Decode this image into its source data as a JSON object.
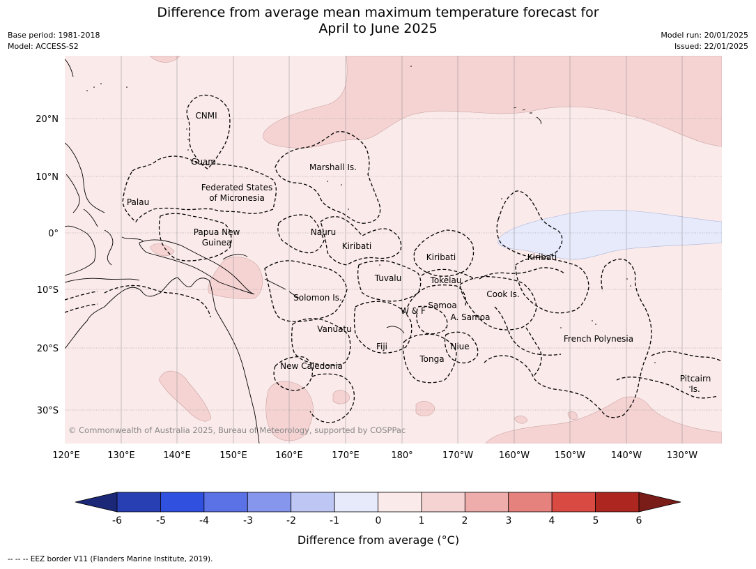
{
  "title_line1": "Difference from average mean maximum temperature forecast for",
  "title_line2": "April to June 2025",
  "meta_left": {
    "base_period": "Base period: 1981-2018",
    "model": "Model: ACCESS-S2"
  },
  "meta_right": {
    "model_run": "Model run: 20/01/2025",
    "issued": "Issued: 22/01/2025"
  },
  "map": {
    "lon_labels": [
      "120°E",
      "130°E",
      "140°E",
      "150°E",
      "160°E",
      "170°E",
      "180°",
      "170°W",
      "160°W",
      "150°W",
      "140°W",
      "130°W"
    ],
    "lat_labels": [
      "20°N",
      "10°N",
      "0°",
      "10°S",
      "20°S",
      "30°S"
    ],
    "regions": [
      {
        "id": "cnmi",
        "label": "CNMI"
      },
      {
        "id": "guam",
        "label": "Guam"
      },
      {
        "id": "marshall",
        "label": "Marshall Is."
      },
      {
        "id": "fsm1",
        "label": "Federated States"
      },
      {
        "id": "fsm2",
        "label": "of Micronesia"
      },
      {
        "id": "palau",
        "label": "Palau"
      },
      {
        "id": "png1",
        "label": "Papua New"
      },
      {
        "id": "png2",
        "label": "Guinea"
      },
      {
        "id": "nauru",
        "label": "Nauru"
      },
      {
        "id": "kiribati_w",
        "label": "Kiribati"
      },
      {
        "id": "kiribati_c",
        "label": "Kiribati"
      },
      {
        "id": "kiribati_e",
        "label": "Kiribati"
      },
      {
        "id": "tuvalu",
        "label": "Tuvalu"
      },
      {
        "id": "tokelau",
        "label": "Tokelau"
      },
      {
        "id": "cook",
        "label": "Cook Is."
      },
      {
        "id": "solomon",
        "label": "Solomon Is."
      },
      {
        "id": "wf",
        "label": "W & F"
      },
      {
        "id": "samoa",
        "label": "Samoa"
      },
      {
        "id": "asamoa",
        "label": "A. Samoa"
      },
      {
        "id": "vanuatu",
        "label": "Vanuatu"
      },
      {
        "id": "fiji",
        "label": "Fiji"
      },
      {
        "id": "niue",
        "label": "Niue"
      },
      {
        "id": "frpoly",
        "label": "French Polynesia"
      },
      {
        "id": "tonga",
        "label": "Tonga"
      },
      {
        "id": "newcal",
        "label": "New Caledonia"
      },
      {
        "id": "pitcairn1",
        "label": "Pitcairn"
      },
      {
        "id": "pitcairn2",
        "label": "Is."
      }
    ],
    "copyright": "© Commonwealth of Australia 2025, Bureau of Meteorology, supported by COSPPac"
  },
  "colorbar": {
    "ticks": [
      "-6",
      "-5",
      "-4",
      "-3",
      "-2",
      "-1",
      "0",
      "1",
      "2",
      "3",
      "4",
      "5",
      "6"
    ],
    "colors": [
      "#283fb3",
      "#3050e0",
      "#5a72e6",
      "#8596ec",
      "#bec7f3",
      "#e6eafb",
      "#fbeaea",
      "#f5d3d3",
      "#eeadab",
      "#e6827e",
      "#d94a42",
      "#ad2620"
    ],
    "under_color": "#1b2878",
    "over_color": "#7a1c18",
    "label": "Difference from average (°C)"
  },
  "footnote": "--  --  -- EEZ border V11 (Flanders Marine Institute, 2019)."
}
